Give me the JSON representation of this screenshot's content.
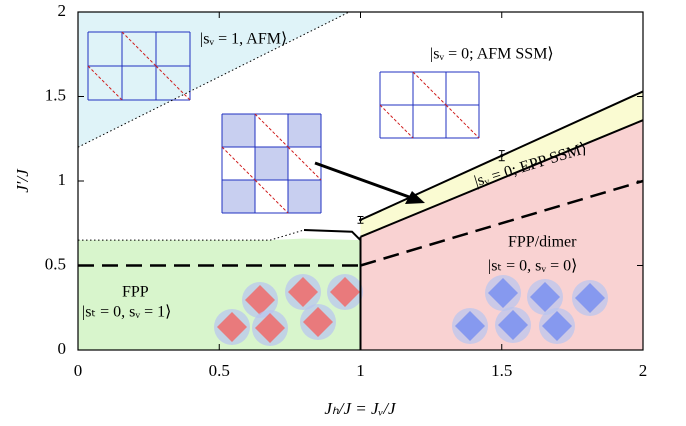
{
  "chart_data": {
    "type": "phase",
    "xlabel": "Jₕ/J = Jᵥ/J",
    "ylabel": "J′/J",
    "xlim": [
      0,
      2
    ],
    "ylim": [
      0,
      2
    ],
    "xticks": [
      0,
      0.5,
      1,
      1.5,
      2
    ],
    "yticks": [
      0,
      0.5,
      1,
      1.5,
      2
    ],
    "regions": [
      {
        "color": "#dff3f8",
        "x": [
          0,
          0.96,
          0
        ],
        "y": [
          1.2,
          2,
          2
        ]
      },
      {
        "color": "#d8f5cc",
        "x": [
          0,
          1,
          1,
          0.8,
          0.68,
          0
        ],
        "y": [
          0,
          0,
          0.65,
          0.66,
          0.65,
          0.65
        ]
      },
      {
        "color": "#fafbd2",
        "x": [
          1,
          2,
          2,
          1
        ],
        "y": [
          0.67,
          1.36,
          1.53,
          0.77
        ]
      },
      {
        "color": "#f9d2d2",
        "x": [
          1,
          2,
          2,
          1
        ],
        "y": [
          0,
          0,
          1.36,
          0.67
        ]
      }
    ],
    "boundaries": [
      {
        "style": "dotted",
        "x": [
          0,
          0.96
        ],
        "y": [
          1.2,
          2
        ]
      },
      {
        "style": "dotted",
        "x": [
          0,
          0.68,
          0.8
        ],
        "y": [
          0.65,
          0.65,
          0.71
        ]
      },
      {
        "style": "solid",
        "x": [
          0.8,
          0.97,
          1
        ],
        "y": [
          0.71,
          0.7,
          0.65
        ]
      },
      {
        "style": "solid",
        "x": [
          1,
          1
        ],
        "y": [
          0,
          0.67
        ]
      },
      {
        "style": "solid",
        "x": [
          1,
          2
        ],
        "y": [
          0.67,
          1.36
        ]
      },
      {
        "style": "solid",
        "x": [
          1,
          2
        ],
        "y": [
          0.77,
          1.53
        ]
      },
      {
        "style": "dashed",
        "x": [
          0,
          1
        ],
        "y": [
          0.5,
          0.5
        ]
      },
      {
        "style": "dashed",
        "x": [
          1,
          2
        ],
        "y": [
          0.5,
          1.0
        ]
      }
    ],
    "error_points": {
      "x": [
        1,
        1.5
      ],
      "y": [
        0.77,
        1.15
      ],
      "err": [
        0.02,
        0.03
      ]
    },
    "annotations": [
      "|sᵥ = 1, AFM⟩",
      "|sᵥ = 0; AFM SSM⟩",
      "|sᵥ = 0; EPP SSM⟩",
      "FPP/dimer",
      "|sₜ = 0, sᵥ = 0⟩",
      "FPP",
      "|sₜ = 0, sᵥ = 1⟩"
    ]
  }
}
